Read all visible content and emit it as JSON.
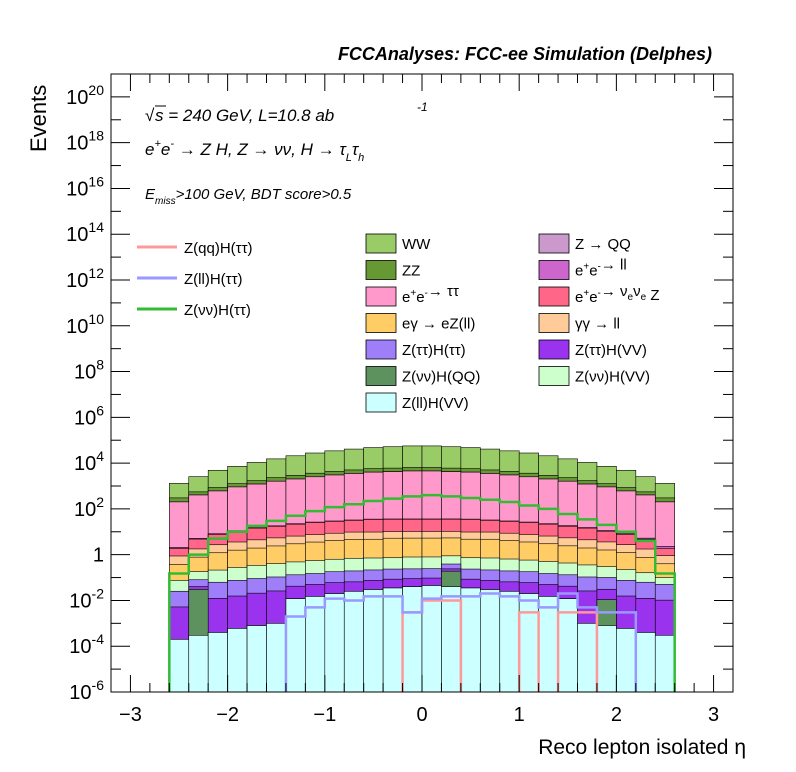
{
  "header": {
    "title": "FCCAnalyses: FCC-ee Simulation (Delphes)"
  },
  "annotations": {
    "line1": "√s = 240 GeV, L=10.8 ab  -1",
    "line2": "e+e- → Z H, Z → νν, H → τLτh",
    "line3": "Emiss>100 GeV, BDT score>0.5"
  },
  "chart_data": {
    "type": "area",
    "xlabel": "Reco lepton isolated η",
    "ylabel": "Events",
    "xlim": [
      -3.2,
      3.2
    ],
    "ylim": [
      1e-06,
      1e+21
    ],
    "log_y": true,
    "x_ticks": [
      "−3",
      "−2",
      "−1",
      "0",
      "1",
      "2",
      "3"
    ],
    "y_ticks": [
      "10^-6",
      "10^-4",
      "10^-2",
      "1",
      "10^2",
      "10^4",
      "10^6",
      "10^8",
      "10^10",
      "10^12",
      "10^14",
      "10^16",
      "10^18",
      "10^20"
    ],
    "bin_edges": [
      -2.6,
      -2.4,
      -2.2,
      -2.0,
      -1.8,
      -1.6,
      -1.4,
      -1.2,
      -1.0,
      -0.8,
      -0.6,
      -0.4,
      -0.2,
      0.0,
      0.2,
      0.4,
      0.6,
      0.8,
      1.0,
      1.2,
      1.4,
      1.6,
      1.8,
      2.0,
      2.2,
      2.4,
      2.6
    ],
    "stack_order": [
      "Z(ll)H(VV)",
      "Z(νν)H(QQ)",
      "Z(ττ)H(VV)",
      "Z(ττ)H(ττ)",
      "Z(νν)H(VV)",
      "eγ → eZ(ll)",
      "γγ → ll",
      "e+e-→ νeνe Z",
      "e+e-→ ll",
      "e+e-→ ττ",
      "Z → QQ",
      "ZZ",
      "WW"
    ],
    "stacked_series": [
      {
        "name": "Z(ll)H(VV)",
        "color": "#ccffff",
        "values": [
          0.0002,
          0.0003,
          0.0004,
          0.0006,
          0.0008,
          0.001,
          0.012,
          0.015,
          0.02,
          0.025,
          0.03,
          0.035,
          0.04,
          0.045,
          0.04,
          0.035,
          0.03,
          0.025,
          0.02,
          0.015,
          0.012,
          0.001,
          0.0008,
          0.0006,
          0.0004,
          0.0003
        ]
      },
      {
        "name": "Z(νν)H(QQ)",
        "color": "#5d915d",
        "values": [
          0,
          0.03,
          0,
          0,
          0,
          0,
          0,
          0,
          0,
          0,
          0,
          0,
          0,
          0,
          0.15,
          0,
          0,
          0,
          0,
          0,
          0,
          0,
          0.01,
          0,
          0,
          0
        ]
      },
      {
        "name": "Z(ττ)H(VV)",
        "color": "#9933ee",
        "values": [
          0.005,
          0.01,
          0.012,
          0.015,
          0.02,
          0.025,
          0.03,
          0.035,
          0.04,
          0.04,
          0.045,
          0.05,
          0.05,
          0.05,
          0.05,
          0.05,
          0.045,
          0.04,
          0.04,
          0.035,
          0.03,
          0.025,
          0.02,
          0.015,
          0.012,
          0.01
        ]
      },
      {
        "name": "Z(ττ)H(ττ)",
        "color": "#9f7ff9",
        "values": [
          0.02,
          0.04,
          0.05,
          0.06,
          0.07,
          0.08,
          0.09,
          0.1,
          0.12,
          0.13,
          0.14,
          0.15,
          0.15,
          0.15,
          0.15,
          0.15,
          0.14,
          0.13,
          0.12,
          0.1,
          0.09,
          0.08,
          0.07,
          0.06,
          0.05,
          0.04
        ]
      },
      {
        "name": "Z(νν)H(VV)",
        "color": "#ccffcc",
        "values": [
          0.05,
          0.1,
          0.15,
          0.2,
          0.25,
          0.3,
          0.35,
          0.4,
          0.45,
          0.5,
          0.5,
          0.5,
          0.55,
          0.55,
          0.5,
          0.5,
          0.5,
          0.45,
          0.4,
          0.35,
          0.3,
          0.25,
          0.2,
          0.15,
          0.1,
          0.05
        ]
      },
      {
        "name": "eγ → eZ(ll)",
        "color": "#ffcc66",
        "values": [
          0.3,
          0.6,
          1.0,
          1.3,
          1.6,
          2,
          2.5,
          3,
          3.5,
          4,
          4,
          4.5,
          4.5,
          4.5,
          4.5,
          4,
          4,
          3.5,
          3,
          2.5,
          2,
          1.6,
          1.3,
          1.0,
          0.6,
          0.3
        ]
      },
      {
        "name": "γγ → ll",
        "color": "#ffcc99",
        "values": [
          0.5,
          1,
          1.5,
          2,
          2.5,
          3,
          3.5,
          4,
          4.5,
          5,
          5,
          5,
          5,
          5,
          5,
          5,
          5,
          4.5,
          4,
          3.5,
          3,
          2.5,
          2,
          1.5,
          1,
          0.5
        ]
      },
      {
        "name": "e+e-→ νeνe Z",
        "color": "#ff6688",
        "values": [
          1,
          3,
          5,
          7,
          10,
          12,
          15,
          18,
          20,
          22,
          25,
          25,
          25,
          25,
          25,
          25,
          22,
          20,
          18,
          15,
          12,
          10,
          7,
          5,
          3,
          1
        ]
      },
      {
        "name": "e+e-→ ll",
        "color": "#cc66cc",
        "values": [
          0.2,
          0.4,
          0.5,
          0.6,
          0.7,
          0.8,
          1,
          1,
          1,
          1,
          1,
          1,
          1,
          1,
          1,
          1,
          1,
          1,
          1,
          1,
          1,
          0.8,
          0.7,
          0.6,
          0.5,
          0.4
        ]
      },
      {
        "name": "e+e-→ ττ",
        "color": "#ff99cc",
        "values": [
          200,
          400,
          600,
          900,
          1200,
          1600,
          2000,
          2500,
          3000,
          3500,
          4000,
          4200,
          4500,
          4500,
          4200,
          4000,
          3500,
          3000,
          2500,
          2000,
          1600,
          1200,
          900,
          600,
          400,
          200
        ]
      },
      {
        "name": "Z → QQ",
        "color": "#cc99cc",
        "values": [
          0.5,
          0.01,
          0.01,
          0.01,
          0.01,
          0.01,
          0.01,
          0.01,
          0.01,
          0.01,
          0.01,
          0.01,
          0.01,
          0.01,
          0.01,
          0.01,
          0.01,
          0.01,
          0.01,
          0.01,
          0.01,
          0.01,
          0.01,
          0.01,
          0.01,
          0.5
        ]
      },
      {
        "name": "ZZ",
        "color": "#669933",
        "values": [
          100,
          150,
          250,
          350,
          500,
          700,
          900,
          1100,
          1300,
          1500,
          1700,
          1800,
          1900,
          1900,
          1800,
          1700,
          1500,
          1300,
          1100,
          900,
          700,
          500,
          350,
          250,
          150,
          100
        ]
      },
      {
        "name": "WW",
        "color": "#99cc66",
        "values": [
          1000,
          2000,
          4000,
          6000,
          9000,
          13000,
          18000,
          24000,
          30000,
          36000,
          42000,
          46000,
          50000,
          50000,
          46000,
          42000,
          36000,
          30000,
          24000,
          18000,
          13000,
          9000,
          6000,
          4000,
          2000,
          1000
        ]
      }
    ],
    "line_series": [
      {
        "name": "Z(qq)H(ττ)",
        "color": "#ff9999",
        "values": [
          0,
          0,
          0,
          0,
          0,
          0,
          0,
          0,
          0,
          0,
          0,
          0,
          0.003,
          0.01,
          0.01,
          0,
          0,
          0,
          0.003,
          0,
          0.003,
          0.003,
          0,
          0,
          0,
          0
        ]
      },
      {
        "name": "Z(ll)H(ττ)",
        "color": "#9999ff",
        "values": [
          0,
          0,
          0,
          0,
          0,
          0,
          0.002,
          0.005,
          0.012,
          0.01,
          0.015,
          0.015,
          0.003,
          0.012,
          0.015,
          0.015,
          0.02,
          0.015,
          0.01,
          0.005,
          0.02,
          0.005,
          0.003,
          0.003,
          0,
          0
        ]
      },
      {
        "name": "Z(νν)H(ττ)",
        "color": "#33bb33",
        "values": [
          0.15,
          1.0,
          5,
          10,
          18,
          30,
          50,
          80,
          120,
          160,
          220,
          280,
          350,
          400,
          350,
          300,
          250,
          200,
          140,
          100,
          60,
          35,
          20,
          10,
          4,
          0.15
        ]
      }
    ]
  },
  "legend": {
    "lines": [
      {
        "label": "Z(qq)H(ττ)",
        "color": "#ff9999"
      },
      {
        "label": "Z(ll)H(ττ)",
        "color": "#9999ff"
      },
      {
        "label": "Z(νν)H(ττ)",
        "color": "#33bb33"
      }
    ],
    "boxes_left": [
      {
        "label": "WW",
        "color": "#99cc66"
      },
      {
        "label": "ZZ",
        "color": "#669933"
      },
      {
        "label": "e+e-→ ττ",
        "color": "#ff99cc"
      },
      {
        "label": "eγ → eZ(ll)",
        "color": "#ffcc66"
      },
      {
        "label": "Z(ττ)H(ττ)",
        "color": "#9f7ff9"
      },
      {
        "label": "Z(νν)H(QQ)",
        "color": "#5d915d"
      },
      {
        "label": "Z(ll)H(VV)",
        "color": "#ccffff"
      }
    ],
    "boxes_right": [
      {
        "label": "Z → QQ",
        "color": "#cc99cc"
      },
      {
        "label": "e+e-→ ll",
        "color": "#cc66cc"
      },
      {
        "label": "e+e-→ νeνe Z",
        "color": "#ff6688"
      },
      {
        "label": "γγ → ll",
        "color": "#ffcc99"
      },
      {
        "label": "Z(ττ)H(VV)",
        "color": "#9933ee"
      },
      {
        "label": "Z(νν)H(VV)",
        "color": "#ccffcc"
      }
    ]
  }
}
